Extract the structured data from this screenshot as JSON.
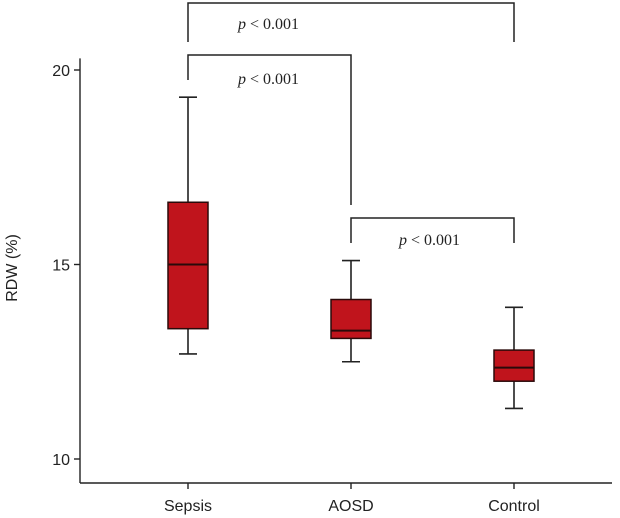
{
  "chart_data": {
    "type": "box",
    "ylabel": "RDW (%)",
    "ylim": [
      10,
      20.3
    ],
    "yticks": [
      10,
      15,
      20
    ],
    "categories": [
      "Sepsis",
      "AOSD",
      "Control"
    ],
    "boxes": [
      {
        "category": "Sepsis",
        "whisker_low": 12.7,
        "q1": 13.35,
        "median": 15.0,
        "q3": 16.6,
        "whisker_high": 19.3
      },
      {
        "category": "AOSD",
        "whisker_low": 12.5,
        "q1": 13.1,
        "median": 13.3,
        "q3": 14.1,
        "whisker_high": 15.1
      },
      {
        "category": "Control",
        "whisker_low": 11.3,
        "q1": 12.0,
        "median": 12.35,
        "q3": 12.8,
        "whisker_high": 13.9
      }
    ],
    "comparisons": [
      {
        "from": "Sepsis",
        "to": "Control",
        "label": "p < 0.001",
        "level": "top"
      },
      {
        "from": "Sepsis",
        "to": "AOSD",
        "label": "p < 0.001",
        "level": "upper"
      },
      {
        "from": "AOSD",
        "to": "Control",
        "label": "p < 0.001",
        "level": "lower"
      }
    ],
    "colors": {
      "box_fill": "#c0141c",
      "box_edge": "#2a0a0a",
      "line": "#222222"
    }
  }
}
